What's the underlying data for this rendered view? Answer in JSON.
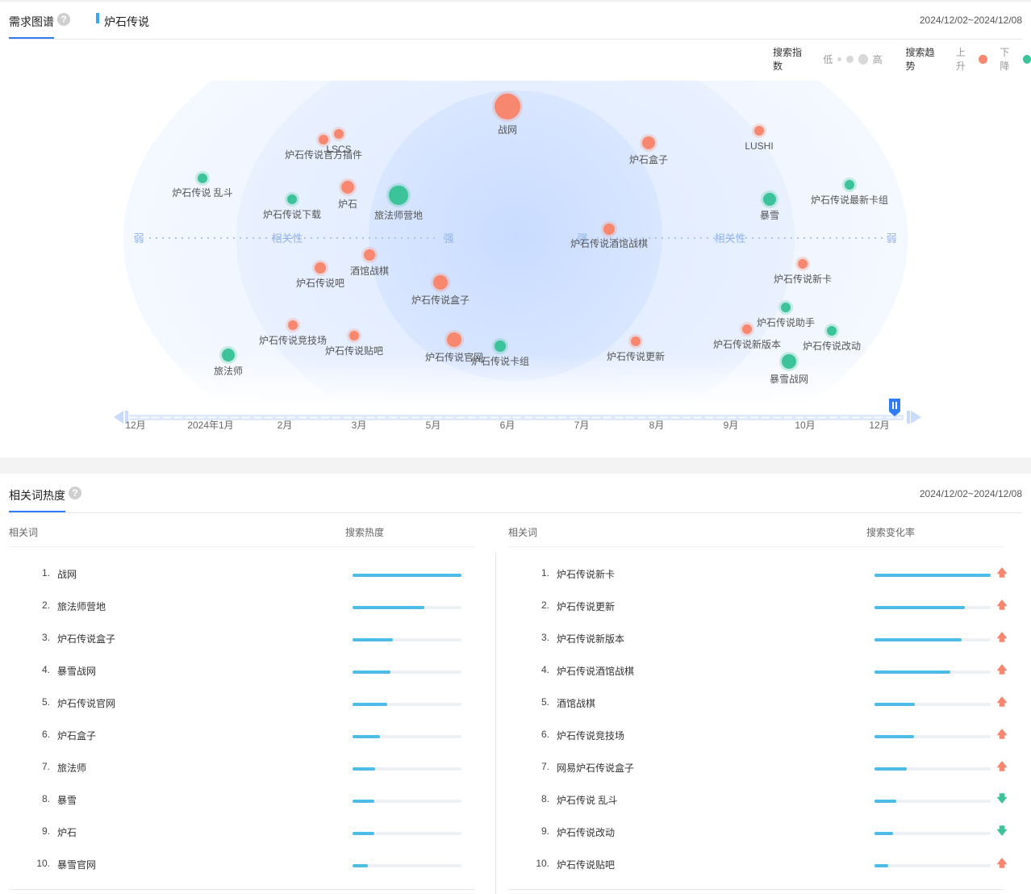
{
  "demand_graph": {
    "title": "需求图谱",
    "help": "?",
    "keyword": "炉石传说",
    "date_range": "2024/12/02~2024/12/08",
    "legend": {
      "index_label": "搜索指数",
      "low": "低",
      "high": "高",
      "trend_label": "搜索趋势",
      "up": "上升",
      "down": "下降",
      "up_color": "#f7886f",
      "down_color": "#3cc39a"
    },
    "axis": {
      "weak": "弱",
      "relevance": "相关性",
      "strong": "强"
    },
    "bubbles": [
      {
        "label": "战网",
        "trend": "up"
      },
      {
        "label": "LSCS",
        "trend": "up"
      },
      {
        "label": "炉石传说官方插件",
        "trend": "up"
      },
      {
        "label": "炉石盒子",
        "trend": "up"
      },
      {
        "label": "LUSHI",
        "trend": "up"
      },
      {
        "label": "炉石传说 乱斗",
        "trend": "down"
      },
      {
        "label": "炉石传说下载",
        "trend": "down"
      },
      {
        "label": "炉石",
        "trend": "up"
      },
      {
        "label": "旅法师营地",
        "trend": "down"
      },
      {
        "label": "暴雪",
        "trend": "down"
      },
      {
        "label": "炉石传说最新卡组",
        "trend": "down"
      },
      {
        "label": "炉石传说酒馆战棋",
        "trend": "up"
      },
      {
        "label": "酒馆战棋",
        "trend": "up"
      },
      {
        "label": "炉石传说吧",
        "trend": "up"
      },
      {
        "label": "炉石传说盒子",
        "trend": "up"
      },
      {
        "label": "炉石传说新卡",
        "trend": "up"
      },
      {
        "label": "炉石传说助手",
        "trend": "down"
      },
      {
        "label": "炉石传说竞技场",
        "trend": "up"
      },
      {
        "label": "炉石传说贴吧",
        "trend": "up"
      },
      {
        "label": "炉石传说官网",
        "trend": "up"
      },
      {
        "label": "炉石传说卡组",
        "trend": "down"
      },
      {
        "label": "炉石传说更新",
        "trend": "up"
      },
      {
        "label": "炉石传说新版本",
        "trend": "up"
      },
      {
        "label": "炉石传说改动",
        "trend": "down"
      },
      {
        "label": "旅法师",
        "trend": "down"
      },
      {
        "label": "暴雪战网",
        "trend": "down"
      }
    ],
    "timeline": [
      "12月",
      "2024年1月",
      "2月",
      "3月",
      "5月",
      "6月",
      "7月",
      "8月",
      "9月",
      "10月",
      "12月"
    ]
  },
  "related_heat": {
    "title": "相关词热度",
    "help": "?",
    "date_range": "2024/12/02~2024/12/08",
    "left": {
      "col_word": "相关词",
      "col_metric": "搜索热度",
      "rows": [
        {
          "rank": "1.",
          "word": "战网",
          "value": 1.0
        },
        {
          "rank": "2.",
          "word": "旅法师营地",
          "value": 0.66
        },
        {
          "rank": "3.",
          "word": "炉石传说盒子",
          "value": 0.37
        },
        {
          "rank": "4.",
          "word": "暴雪战网",
          "value": 0.35
        },
        {
          "rank": "5.",
          "word": "炉石传说官网",
          "value": 0.32
        },
        {
          "rank": "6.",
          "word": "炉石盒子",
          "value": 0.25
        },
        {
          "rank": "7.",
          "word": "旅法师",
          "value": 0.21
        },
        {
          "rank": "8.",
          "word": "暴雪",
          "value": 0.2
        },
        {
          "rank": "9.",
          "word": "炉石",
          "value": 0.2
        },
        {
          "rank": "10.",
          "word": "暴雪官网",
          "value": 0.14
        }
      ]
    },
    "right": {
      "col_word": "相关词",
      "col_metric": "搜索变化率",
      "rows": [
        {
          "rank": "1.",
          "word": "炉石传说新卡",
          "value": 1.0,
          "trend": "up",
          "arrow": "🡅"
        },
        {
          "rank": "2.",
          "word": "炉石传说更新",
          "value": 0.78,
          "trend": "up",
          "arrow": "🡅"
        },
        {
          "rank": "3.",
          "word": "炉石传说新版本",
          "value": 0.75,
          "trend": "up",
          "arrow": "🡅"
        },
        {
          "rank": "4.",
          "word": "炉石传说酒馆战棋",
          "value": 0.65,
          "trend": "up",
          "arrow": "🡅"
        },
        {
          "rank": "5.",
          "word": "酒馆战棋",
          "value": 0.35,
          "trend": "up",
          "arrow": "🡅"
        },
        {
          "rank": "6.",
          "word": "炉石传说竞技场",
          "value": 0.34,
          "trend": "up",
          "arrow": "🡅"
        },
        {
          "rank": "7.",
          "word": "网易炉石传说盒子",
          "value": 0.28,
          "trend": "up",
          "arrow": "🡅"
        },
        {
          "rank": "8.",
          "word": "炉石传说 乱斗",
          "value": 0.19,
          "trend": "down",
          "arrow": "🡇"
        },
        {
          "rank": "9.",
          "word": "炉石传说改动",
          "value": 0.16,
          "trend": "down",
          "arrow": "🡇"
        },
        {
          "rank": "10.",
          "word": "炉石传说贴吧",
          "value": 0.12,
          "trend": "up",
          "arrow": "🡅"
        }
      ]
    }
  }
}
